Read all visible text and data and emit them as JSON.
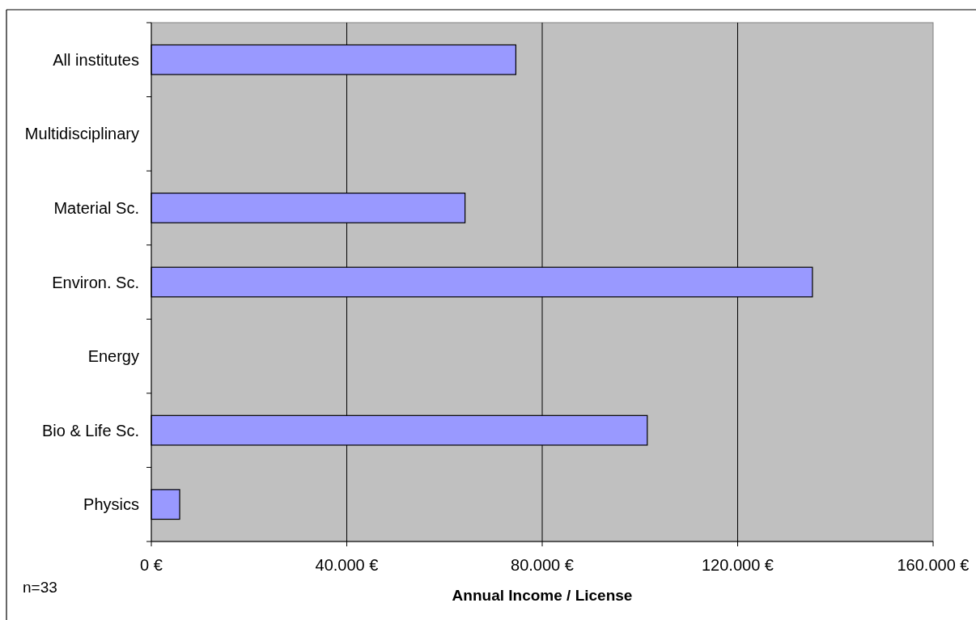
{
  "chart_data": {
    "type": "bar",
    "orientation": "horizontal",
    "categories": [
      "All institutes",
      "Multidisciplinary",
      "Material Sc.",
      "Environ. Sc.",
      "Energy",
      "Bio & Life Sc.",
      "Physics"
    ],
    "values": [
      74600,
      null,
      64200,
      135300,
      null,
      101500,
      5800
    ],
    "color": "#9999ff",
    "xlabel": "Annual Income / License",
    "xlim": [
      0,
      160000
    ],
    "xticks": [
      {
        "value": 0,
        "label": "0 €"
      },
      {
        "value": 40000,
        "label": "40.000 €"
      },
      {
        "value": 80000,
        "label": "80.000 €"
      },
      {
        "value": 120000,
        "label": "120.000 €"
      },
      {
        "value": 160000,
        "label": "160.000 €"
      }
    ],
    "grid": "x",
    "annotations": [
      "n=33"
    ]
  }
}
